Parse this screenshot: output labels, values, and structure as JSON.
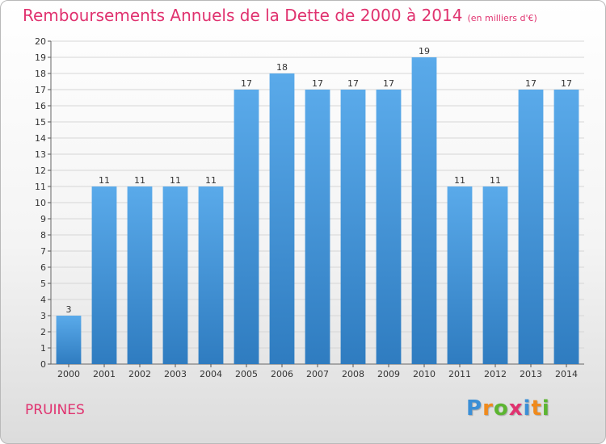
{
  "title": "Remboursements Annuels de la Dette de 2000 à 2014",
  "subtitle": "(en milliers d'€)",
  "commune": "PRUINES",
  "logo": {
    "letters": [
      "P",
      "r",
      "o",
      "x",
      "i",
      "t",
      "i"
    ],
    "colors": [
      "#3b8fd6",
      "#f08a1c",
      "#5cb531",
      "#e0326f",
      "#3b8fd6",
      "#f08a1c",
      "#5cb531"
    ]
  },
  "colors": {
    "accent": "#e0326f",
    "bar_top": "#5aaaea",
    "bar_bottom": "#2f7cc0",
    "grid": "#d6d6d6"
  },
  "chart_data": {
    "type": "bar",
    "categories": [
      "2000",
      "2001",
      "2002",
      "2003",
      "2004",
      "2005",
      "2006",
      "2007",
      "2008",
      "2009",
      "2010",
      "2011",
      "2012",
      "2013",
      "2014"
    ],
    "values": [
      3,
      11,
      11,
      11,
      11,
      17,
      18,
      17,
      17,
      17,
      19,
      11,
      11,
      17,
      17
    ],
    "data_labels": [
      "3",
      "11",
      "11",
      "11",
      "11",
      "17",
      "18",
      "17",
      "17",
      "17",
      "19",
      "11",
      "11",
      "17",
      "17"
    ],
    "yticks": [
      0,
      1,
      2,
      3,
      4,
      5,
      6,
      7,
      8,
      9,
      10,
      11,
      12,
      13,
      14,
      15,
      16,
      17,
      18,
      19,
      20
    ],
    "ylim": [
      0,
      20
    ],
    "grid": true
  }
}
